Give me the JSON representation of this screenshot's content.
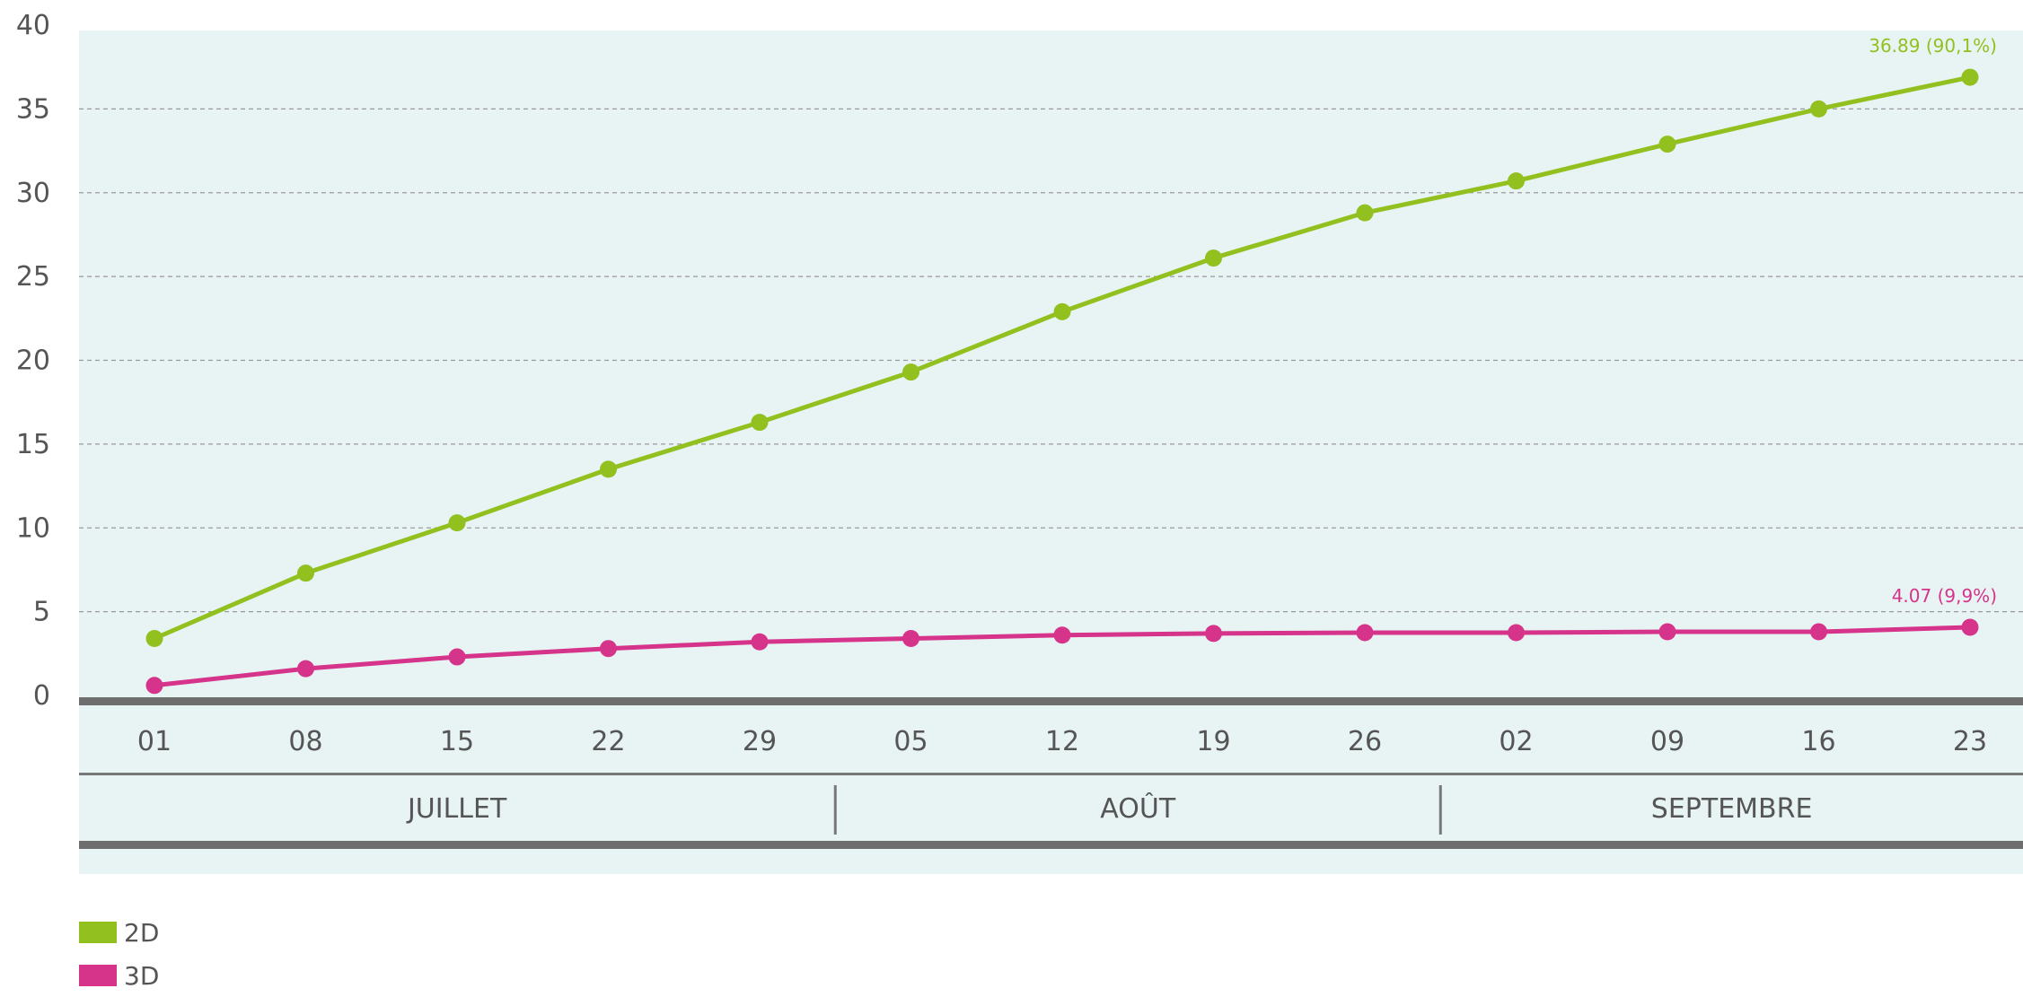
{
  "chart_data": {
    "type": "line",
    "title": "",
    "xlabel": "",
    "ylabel": "",
    "x": [
      "01",
      "08",
      "15",
      "22",
      "29",
      "05",
      "12",
      "19",
      "26",
      "02",
      "09",
      "16",
      "23"
    ],
    "months": [
      {
        "label": "JUILLET",
        "span": [
          0,
          4
        ]
      },
      {
        "label": "AOÛT",
        "span": [
          5,
          8
        ]
      },
      {
        "label": "SEPTEMBRE",
        "span": [
          9,
          12
        ]
      }
    ],
    "yticks": [
      0,
      5,
      10,
      15,
      20,
      25,
      30,
      35,
      40
    ],
    "ylim": [
      0,
      40
    ],
    "grid": true,
    "legend_position": "bottom-left",
    "series": [
      {
        "name": "2D",
        "color": "#92c01f",
        "values": [
          3.4,
          7.3,
          10.3,
          13.5,
          16.3,
          19.3,
          22.9,
          26.1,
          28.8,
          30.7,
          32.9,
          35.0,
          36.89
        ],
        "end_label": "36.89 (90,1%)"
      },
      {
        "name": "3D",
        "color": "#d6338b",
        "values": [
          0.6,
          1.6,
          2.3,
          2.8,
          3.2,
          3.4,
          3.6,
          3.7,
          3.75,
          3.75,
          3.8,
          3.8,
          4.07
        ],
        "end_label": "4.07 (9,9%)"
      }
    ]
  }
}
